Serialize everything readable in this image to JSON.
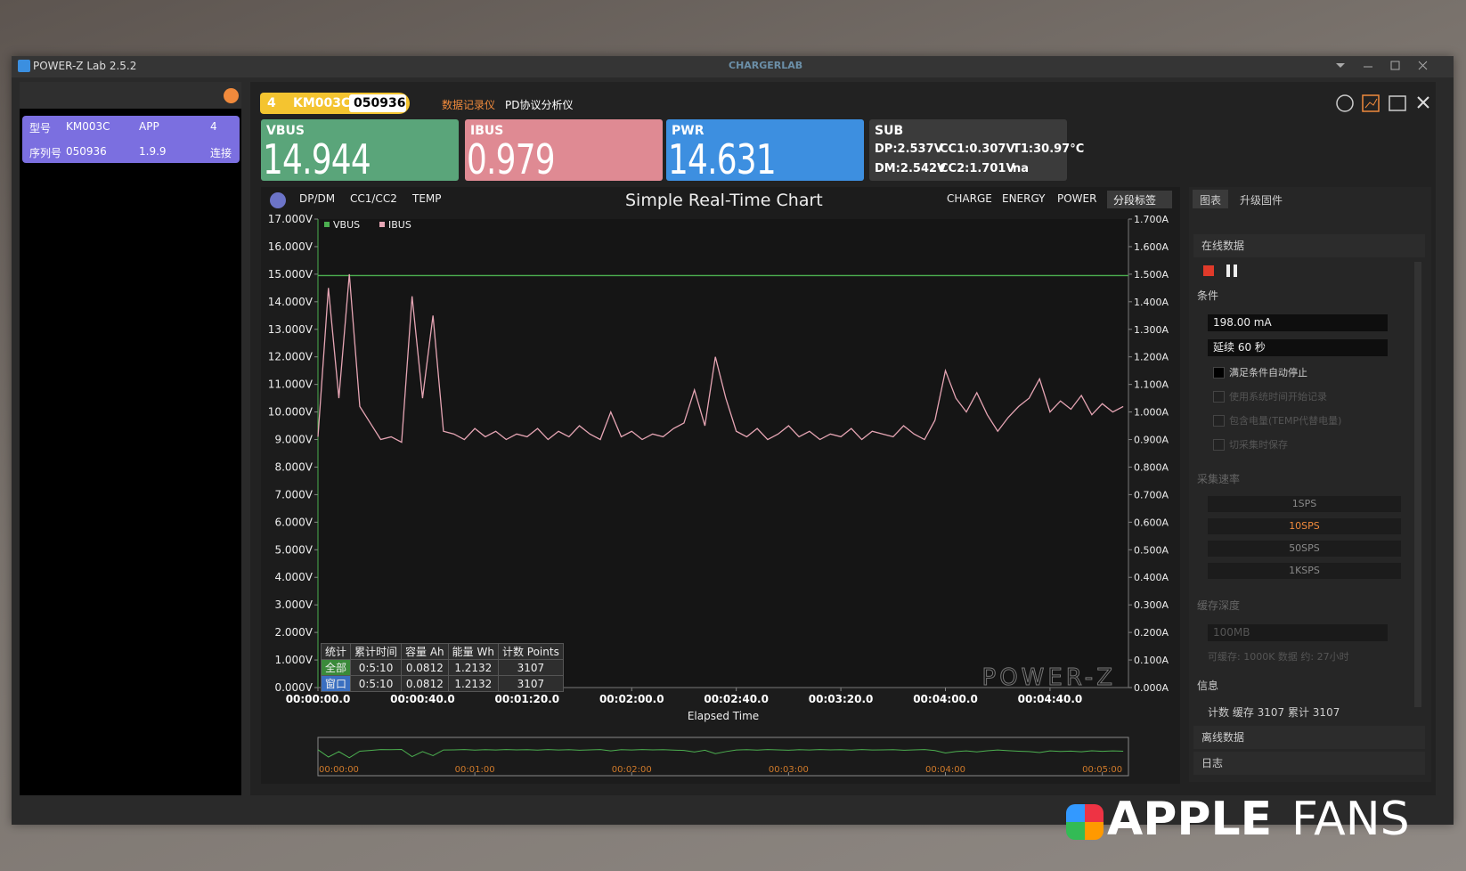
{
  "window": {
    "title": "POWER-Z Lab 2.5.2",
    "brand": "CHARGERLAB"
  },
  "device_list": {
    "rows": [
      [
        "型号",
        "KM003C",
        "APP",
        "4"
      ],
      [
        "序列号",
        "050936",
        "1.9.9",
        "连接"
      ]
    ]
  },
  "header": {
    "badge_num": "4",
    "model": "KM003C",
    "serial": "050936",
    "tabs": [
      "数据记录仪",
      "PD协议分析仪"
    ]
  },
  "readouts": [
    {
      "label": "VBUS",
      "value": "14.944 64 V"
    },
    {
      "label": "IBUS",
      "value": "0.979 018 A"
    },
    {
      "label": "PWR",
      "value": "14.631 07W"
    }
  ],
  "sub": {
    "label": "SUB",
    "items": [
      "DP:2.537V",
      "CC1:0.307V",
      "T1:30.97°C",
      "DM:2.542V",
      "CC2:1.701V",
      "na"
    ]
  },
  "toolbar": {
    "left": [
      "DP/DM",
      "CC1/CC2",
      "TEMP"
    ],
    "right": [
      "CHARGE",
      "ENERGY",
      "POWER",
      "分段标签"
    ]
  },
  "chart_data": {
    "type": "line",
    "title": "Simple Real-Time Chart",
    "x_label": "Elapsed Time",
    "xlim": [
      0,
      310
    ],
    "xticks": [
      {
        "value": 0,
        "label": "00:00:00.0"
      },
      {
        "value": 40,
        "label": "00:00:40.0"
      },
      {
        "value": 80,
        "label": "00:01:20.0"
      },
      {
        "value": 120,
        "label": "00:02:00.0"
      },
      {
        "value": 160,
        "label": "00:02:40.0"
      },
      {
        "value": 200,
        "label": "00:03:20.0"
      },
      {
        "value": 240,
        "label": "00:04:00.0"
      },
      {
        "value": 280,
        "label": "00:04:40.0"
      }
    ],
    "ylim": [
      0,
      17
    ],
    "yticks": [
      {
        "value": 0,
        "label": "0.000V"
      },
      {
        "value": 1,
        "label": "1.000V"
      },
      {
        "value": 2,
        "label": "2.000V"
      },
      {
        "value": 3,
        "label": "3.000V"
      },
      {
        "value": 4,
        "label": "4.000V"
      },
      {
        "value": 5,
        "label": "5.000V"
      },
      {
        "value": 6,
        "label": "6.000V"
      },
      {
        "value": 7,
        "label": "7.000V"
      },
      {
        "value": 8,
        "label": "8.000V"
      },
      {
        "value": 9,
        "label": "9.000V"
      },
      {
        "value": 10,
        "label": "10.000V"
      },
      {
        "value": 11,
        "label": "11.000V"
      },
      {
        "value": 12,
        "label": "12.000V"
      },
      {
        "value": 13,
        "label": "13.000V"
      },
      {
        "value": 14,
        "label": "14.000V"
      },
      {
        "value": 15,
        "label": "15.000V"
      },
      {
        "value": 16,
        "label": "16.000V"
      },
      {
        "value": 17,
        "label": "17.000V"
      }
    ],
    "y2lim": [
      0,
      1.7
    ],
    "y2ticks": [
      {
        "value": 0,
        "label": "0.000A"
      },
      {
        "value": 0.1,
        "label": "0.100A"
      },
      {
        "value": 0.2,
        "label": "0.200A"
      },
      {
        "value": 0.3,
        "label": "0.300A"
      },
      {
        "value": 0.4,
        "label": "0.400A"
      },
      {
        "value": 0.5,
        "label": "0.500A"
      },
      {
        "value": 0.6,
        "label": "0.600A"
      },
      {
        "value": 0.7,
        "label": "0.700A"
      },
      {
        "value": 0.8,
        "label": "0.800A"
      },
      {
        "value": 0.9,
        "label": "0.900A"
      },
      {
        "value": 1.0,
        "label": "1.000A"
      },
      {
        "value": 1.1,
        "label": "1.100A"
      },
      {
        "value": 1.2,
        "label": "1.200A"
      },
      {
        "value": 1.3,
        "label": "1.300A"
      },
      {
        "value": 1.4,
        "label": "1.400A"
      },
      {
        "value": 1.5,
        "label": "1.500A"
      },
      {
        "value": 1.6,
        "label": "1.600A"
      },
      {
        "value": 1.7,
        "label": "1.700A"
      }
    ],
    "series": [
      {
        "name": "VBUS",
        "color": "#4caf50",
        "x": [
          0,
          310
        ],
        "values": [
          14.95,
          14.95
        ]
      },
      {
        "name": "IBUS",
        "color": "#e6a5b4",
        "axis": "y2",
        "x": [
          0,
          4,
          8,
          12,
          16,
          20,
          24,
          28,
          32,
          36,
          40,
          44,
          48,
          52,
          56,
          60,
          64,
          68,
          72,
          76,
          80,
          84,
          88,
          92,
          96,
          100,
          104,
          108,
          112,
          116,
          120,
          124,
          128,
          132,
          136,
          140,
          144,
          148,
          152,
          156,
          160,
          164,
          168,
          172,
          176,
          180,
          184,
          188,
          192,
          196,
          200,
          204,
          208,
          212,
          216,
          220,
          224,
          228,
          232,
          236,
          240,
          244,
          248,
          252,
          256,
          260,
          264,
          268,
          272,
          276,
          280,
          284,
          288,
          292,
          296,
          300,
          304,
          308
        ],
        "values": [
          0.91,
          1.45,
          1.05,
          1.5,
          1.02,
          0.96,
          0.9,
          0.91,
          0.89,
          1.42,
          1.05,
          1.35,
          0.93,
          0.92,
          0.9,
          0.94,
          0.91,
          0.93,
          0.9,
          0.92,
          0.91,
          0.94,
          0.9,
          0.93,
          0.91,
          0.95,
          0.92,
          0.9,
          1.0,
          0.91,
          0.93,
          0.9,
          0.92,
          0.91,
          0.94,
          0.96,
          1.08,
          0.95,
          1.2,
          1.05,
          0.93,
          0.91,
          0.94,
          0.9,
          0.92,
          0.95,
          0.91,
          0.93,
          0.9,
          0.92,
          0.91,
          0.94,
          0.9,
          0.93,
          0.92,
          0.91,
          0.95,
          0.92,
          0.9,
          0.97,
          1.15,
          1.05,
          1.0,
          1.07,
          0.99,
          0.93,
          0.98,
          1.02,
          1.05,
          1.12,
          1.0,
          1.04,
          1.01,
          1.06,
          0.99,
          1.03,
          1.0,
          1.02
        ]
      }
    ]
  },
  "stats": {
    "header": [
      "统计",
      "累计时间",
      "容量 Ah",
      "能量 Wh",
      "计数 Points"
    ],
    "rows": [
      [
        "全部",
        "0:5:10",
        "0.0812",
        "1.2132",
        "3107"
      ],
      [
        "窗口",
        "0:5:10",
        "0.0812",
        "1.2132",
        "3107"
      ]
    ]
  },
  "overview": {
    "xlim": [
      0,
      310
    ],
    "xticks": [
      {
        "value": 0,
        "label": "00:00:00"
      },
      {
        "value": 60,
        "label": "00:01:00"
      },
      {
        "value": 120,
        "label": "00:02:00"
      },
      {
        "value": 180,
        "label": "00:03:00"
      },
      {
        "value": 240,
        "label": "00:04:00"
      },
      {
        "value": 300,
        "label": "00:05:00"
      }
    ]
  },
  "watermark": "POWER-Z",
  "side_panel": {
    "tabs": [
      "图表",
      "升级固件"
    ],
    "online": "在线数据",
    "condition": "条件",
    "current": "198.00 mA",
    "duration": "延续 60 秒",
    "checks": [
      "满足条件自动停止",
      "使用系统时间开始记录",
      "包含电量(TEMP代替电量)",
      "切采集时保存"
    ],
    "rate_label": "采集速率",
    "rates": [
      "1SPS",
      "10SPS",
      "50SPS",
      "1KSPS"
    ],
    "cache_label": "缓存深度",
    "cache": "100MB",
    "cache_info": "可缓存: 1000K 数据 约: 27小时",
    "info_label": "信息",
    "info": "计数  缓存 3107 累计 3107",
    "offline": "离线数据",
    "log": "日志"
  },
  "footer_logo": {
    "apple": "APPLE",
    "fans": "FANS"
  }
}
